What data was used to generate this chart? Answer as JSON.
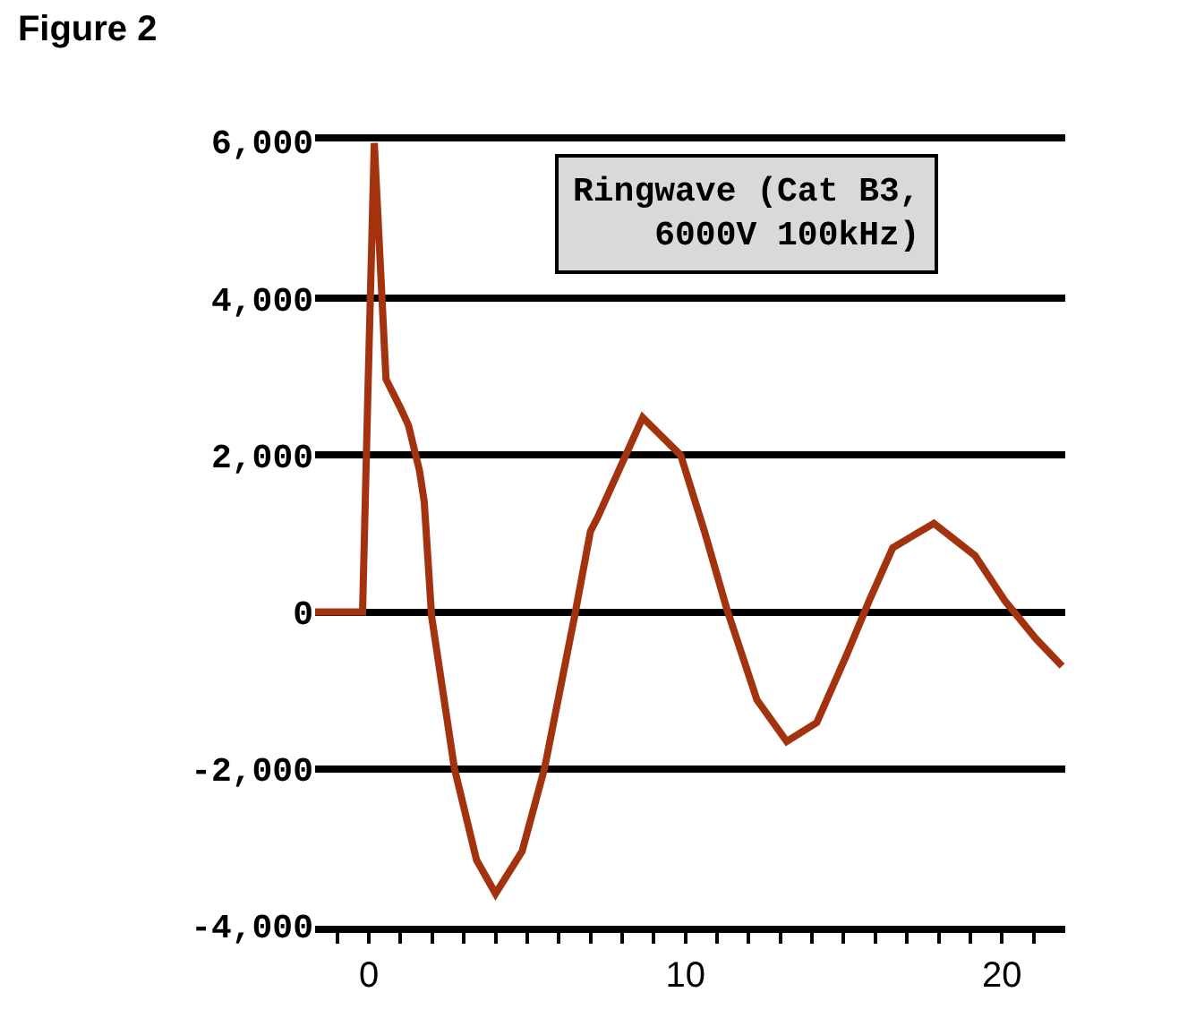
{
  "chart_data": {
    "type": "line",
    "title": "Figure 2",
    "annotations": [
      "Ringwave (Cat B3,\n6000V 100kHz)"
    ],
    "series": [
      {
        "color": "#a3330f",
        "x": [
          -1.7,
          -0.2,
          -0.05,
          0.17,
          0.54,
          1.0,
          1.25,
          1.6,
          1.75,
          1.98,
          2.7,
          3.4,
          4.0,
          4.84,
          5.55,
          6.5,
          7.0,
          7.23,
          8.65,
          9.85,
          10.6,
          11.3,
          12.26,
          13.2,
          14.15,
          15.1,
          15.8,
          16.55,
          17.85,
          19.15,
          20.1,
          21.07,
          21.9
        ],
        "values": [
          0,
          0,
          2500,
          5980,
          2970,
          2600,
          2380,
          1800,
          1400,
          -50,
          -1990,
          -3160,
          -3590,
          -3050,
          -1990,
          -50,
          1030,
          1210,
          2480,
          2000,
          1030,
          50,
          -1120,
          -1650,
          -1410,
          -540,
          140,
          820,
          1130,
          720,
          140,
          -340,
          -690
        ]
      }
    ],
    "xlim": [
      -1.7,
      22
    ],
    "xticks": [
      {
        "value": -1,
        "label": null
      },
      0,
      {
        "value": 1,
        "label": null
      },
      {
        "value": 2,
        "label": null
      },
      {
        "value": 3,
        "label": null
      },
      {
        "value": 4,
        "label": null
      },
      {
        "value": 5,
        "label": null
      },
      {
        "value": 6,
        "label": null
      },
      {
        "value": 7,
        "label": null
      },
      {
        "value": 8,
        "label": null
      },
      {
        "value": 9,
        "label": null
      },
      10,
      {
        "value": 11,
        "label": null
      },
      {
        "value": 12,
        "label": null
      },
      {
        "value": 13,
        "label": null
      },
      {
        "value": 14,
        "label": null
      },
      {
        "value": 15,
        "label": null
      },
      {
        "value": 16,
        "label": null
      },
      {
        "value": 17,
        "label": null
      },
      {
        "value": 18,
        "label": null
      },
      {
        "value": 19,
        "label": null
      },
      20,
      {
        "value": 21,
        "label": null
      }
    ],
    "ylim": [
      -4000,
      6000
    ],
    "yticks": [
      {
        "value": -4000,
        "label": "-4,000"
      },
      {
        "value": -2000,
        "label": "-2,000"
      },
      0,
      {
        "value": 2000,
        "label": "2,000"
      },
      {
        "value": 4000,
        "label": "4,000"
      },
      {
        "value": 6000,
        "label": "6,000"
      }
    ],
    "grid": "y",
    "marker": "none",
    "line_style": "solid"
  }
}
